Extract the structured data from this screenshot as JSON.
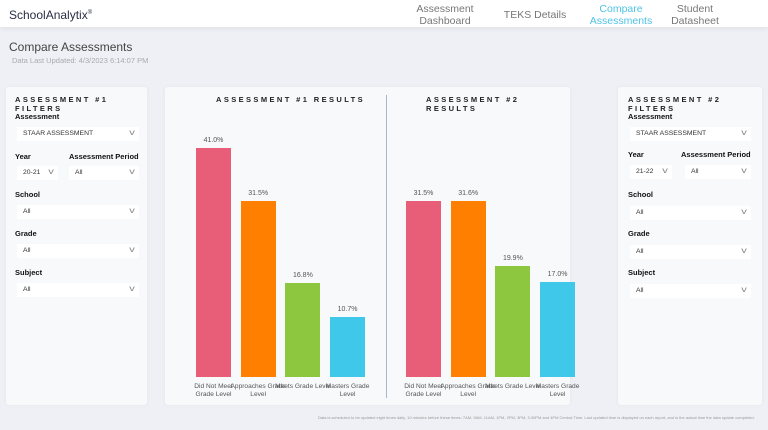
{
  "header": {
    "brand": "SchoolAnalytix",
    "brand_mark": "®",
    "nav": [
      {
        "label": "Assessment Dashboard",
        "active": false
      },
      {
        "label": "TEKS Details",
        "active": false
      },
      {
        "label": "Compare Assessments",
        "active": true
      },
      {
        "label": "Student Datasheet",
        "active": false
      }
    ]
  },
  "page": {
    "title": "Compare Assessments",
    "updated": "Data Last Updated: 4/3/2023 6:14:07 PM"
  },
  "filters1": {
    "title": "ASSESSMENT #1 FILTERS",
    "assessment_label": "Assessment",
    "assessment": "STAAR ASSESSMENT",
    "year_label": "Year",
    "year": "20-21",
    "period_label": "Assessment Period",
    "period": "All",
    "school_label": "School",
    "school": "All",
    "grade_label": "Grade",
    "grade": "All",
    "subject_label": "Subject",
    "subject": "All"
  },
  "filters2": {
    "title": "ASSESSMENT #2 FILTERS",
    "assessment_label": "Assessment",
    "assessment": "STAAR ASSESSMENT",
    "year_label": "Year",
    "year": "21-22",
    "period_label": "Assessment Period",
    "period": "All",
    "school_label": "School",
    "school": "All",
    "grade_label": "Grade",
    "grade": "All",
    "subject_label": "Subject",
    "subject": "All"
  },
  "chart_data": [
    {
      "type": "bar",
      "title": "ASSESSMENT #1 RESULTS",
      "categories": [
        "Did Not Meet Grade Level",
        "Approaches Grade Level",
        "Meets Grade Level",
        "Masters Grade Level"
      ],
      "values": [
        41.0,
        31.5,
        16.8,
        10.7
      ],
      "labels": [
        "41.0%",
        "31.5%",
        "16.8%",
        "10.7%"
      ],
      "colors": [
        "#e85d78",
        "#ff7f00",
        "#8dc63f",
        "#40c8ea"
      ],
      "grid": false
    },
    {
      "type": "bar",
      "title": "ASSESSMENT #2 RESULTS",
      "categories": [
        "Did Not Meet Grade Level",
        "Approaches Grade Level",
        "Meets Grade Level",
        "Masters Grade Level"
      ],
      "values": [
        31.5,
        31.6,
        19.9,
        17.0
      ],
      "labels": [
        "31.5%",
        "31.6%",
        "19.9%",
        "17.0%"
      ],
      "colors": [
        "#e85d78",
        "#ff7f00",
        "#8dc63f",
        "#40c8ea"
      ],
      "grid": false
    }
  ],
  "footer": "Data is scheduled to be updated eight times daily, 10 minutes before these times: 7AM, 9AM, 11AM, 1PM, 2PM, 3PM, 3:30PM and 4PM Central Time. Last updated time is displayed on each report, and is the actual time the data update completed."
}
